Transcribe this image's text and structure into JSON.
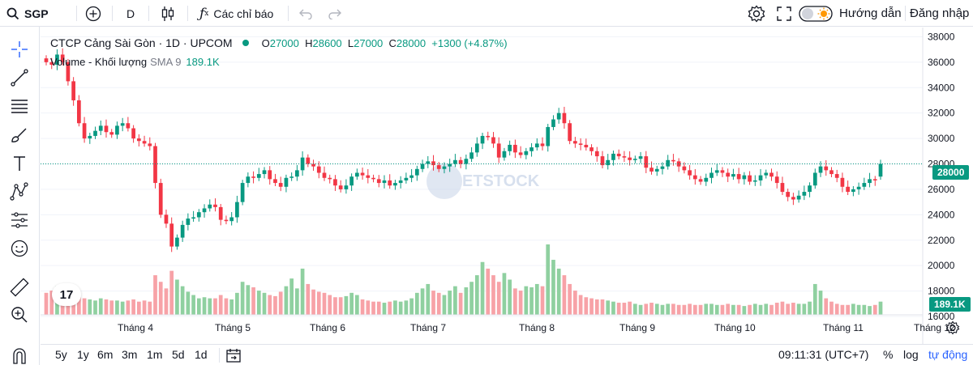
{
  "topbar": {
    "symbol": "SGP",
    "interval": "D",
    "indicators_label": "Các chỉ báo",
    "guide_label": "Hướng dẫn",
    "login_label": "Đăng nhập"
  },
  "legend": {
    "title": "CTCP Cảng Sài Gòn · 1D · UPCOM",
    "o_key": "O",
    "o_val": "27000",
    "h_key": "H",
    "h_val": "28600",
    "l_key": "L",
    "l_val": "27000",
    "c_key": "C",
    "c_val": "28000",
    "change": "+1300 (+4.87%)",
    "volume_label": "Volume - Khối lượng",
    "volume_sma": "SMA 9",
    "volume_value": "189.1K"
  },
  "badges": {
    "price": "28000",
    "volume": "189.1K"
  },
  "watermark": "ETSTOCK",
  "tv_logo": "17",
  "bottombar": {
    "ranges": [
      "5y",
      "1y",
      "6m",
      "3m",
      "1m",
      "5d",
      "1d"
    ],
    "time": "09:11:31 (UTC+7)",
    "percent_label": "%",
    "log_label": "log",
    "auto_label": "tự động"
  },
  "colors": {
    "up": "#089981",
    "down": "#f23645",
    "vol_up": "#8fd0a0",
    "vol_down": "#f7a2a7",
    "grid": "#f0f3fa"
  },
  "chart_data": {
    "type": "candlestick",
    "title": "CTCP Cảng Sài Gòn · 1D · UPCOM",
    "y_ticks": [
      16000,
      18000,
      20000,
      22000,
      24000,
      26000,
      28000,
      30000,
      32000,
      34000,
      36000,
      38000
    ],
    "ylim": [
      16000,
      38600
    ],
    "x_tick_labels": [
      "Tháng 4",
      "Tháng 5",
      "Tháng 6",
      "Tháng 7",
      "Tháng 8",
      "Tháng 9",
      "Tháng 10",
      "Tháng 11",
      "Tháng 12"
    ],
    "last_close": 28000,
    "closes": [
      36000,
      35800,
      36600,
      36000,
      34500,
      33000,
      31200,
      30000,
      30200,
      30600,
      31000,
      30500,
      30300,
      31000,
      31200,
      30800,
      30000,
      29800,
      29600,
      29400,
      26500,
      24000,
      23300,
      21500,
      22200,
      23200,
      23700,
      23800,
      24200,
      24500,
      24800,
      24600,
      23600,
      23500,
      23800,
      25000,
      26500,
      27000,
      26900,
      27200,
      27500,
      26800,
      26500,
      26200,
      26900,
      27000,
      27500,
      28500,
      28000,
      27800,
      27300,
      26900,
      26800,
      26300,
      26000,
      26300,
      27000,
      27300,
      27100,
      26900,
      26800,
      26500,
      26700,
      26300,
      26500,
      26700,
      26900,
      27100,
      27600,
      28000,
      28200,
      27900,
      27600,
      27800,
      28000,
      28300,
      28000,
      28400,
      28900,
      29600,
      30200,
      30100,
      29600,
      28500,
      29000,
      29500,
      28900,
      28700,
      29000,
      29300,
      29600,
      29400,
      30900,
      31500,
      32000,
      31200,
      29800,
      29600,
      29500,
      29300,
      29000,
      28600,
      27900,
      28300,
      28800,
      28600,
      28500,
      28300,
      28400,
      28600,
      27700,
      27400,
      27600,
      27800,
      28300,
      28200,
      27800,
      27500,
      27100,
      26800,
      26600,
      26900,
      27300,
      27500,
      27300,
      27000,
      27200,
      26800,
      27100,
      26600,
      26700,
      27100,
      27300,
      27000,
      26500,
      25800,
      25400,
      25200,
      25500,
      25800,
      26300,
      27300,
      27800,
      27500,
      27200,
      26900,
      26200,
      25800,
      26000,
      26200,
      26500,
      26800,
      26700,
      28000
    ],
    "volumes": [
      20000,
      22000,
      26000,
      20000,
      24000,
      23000,
      16000,
      15000,
      14000,
      13000,
      15000,
      14000,
      13000,
      13000,
      12000,
      13000,
      14000,
      12000,
      13000,
      12000,
      36000,
      30000,
      24000,
      40000,
      32000,
      26000,
      21000,
      18000,
      15000,
      16000,
      15000,
      15000,
      18000,
      15000,
      14000,
      20000,
      30000,
      27000,
      25000,
      22000,
      20000,
      18000,
      17000,
      21000,
      26000,
      33000,
      24000,
      42000,
      28000,
      23000,
      21000,
      20000,
      18000,
      16000,
      16000,
      17000,
      20000,
      18000,
      14000,
      13000,
      12000,
      12000,
      11000,
      12000,
      13000,
      12000,
      13000,
      15000,
      20000,
      24000,
      28000,
      22000,
      20000,
      18000,
      22000,
      26000,
      20000,
      25000,
      30000,
      36000,
      48000,
      42000,
      36000,
      30000,
      38000,
      32000,
      24000,
      22000,
      26000,
      25000,
      28000,
      26000,
      64000,
      50000,
      42000,
      36000,
      28000,
      22000,
      18000,
      16000,
      15000,
      14000,
      14000,
      13000,
      12000,
      11000,
      11000,
      12000,
      10000,
      9000,
      10000,
      11000,
      10000,
      9000,
      10000,
      10000,
      9000,
      9000,
      10000,
      9000,
      9000,
      10000,
      10000,
      9000,
      9000,
      10000,
      9000,
      9000,
      8000,
      9000,
      10000,
      9000,
      10000,
      9000,
      11000,
      12000,
      10000,
      11000,
      10000,
      10000,
      12000,
      28000,
      22000,
      15000,
      12000,
      10000,
      9000,
      9000,
      10000,
      9000,
      9000,
      8000,
      9000,
      12000
    ]
  }
}
